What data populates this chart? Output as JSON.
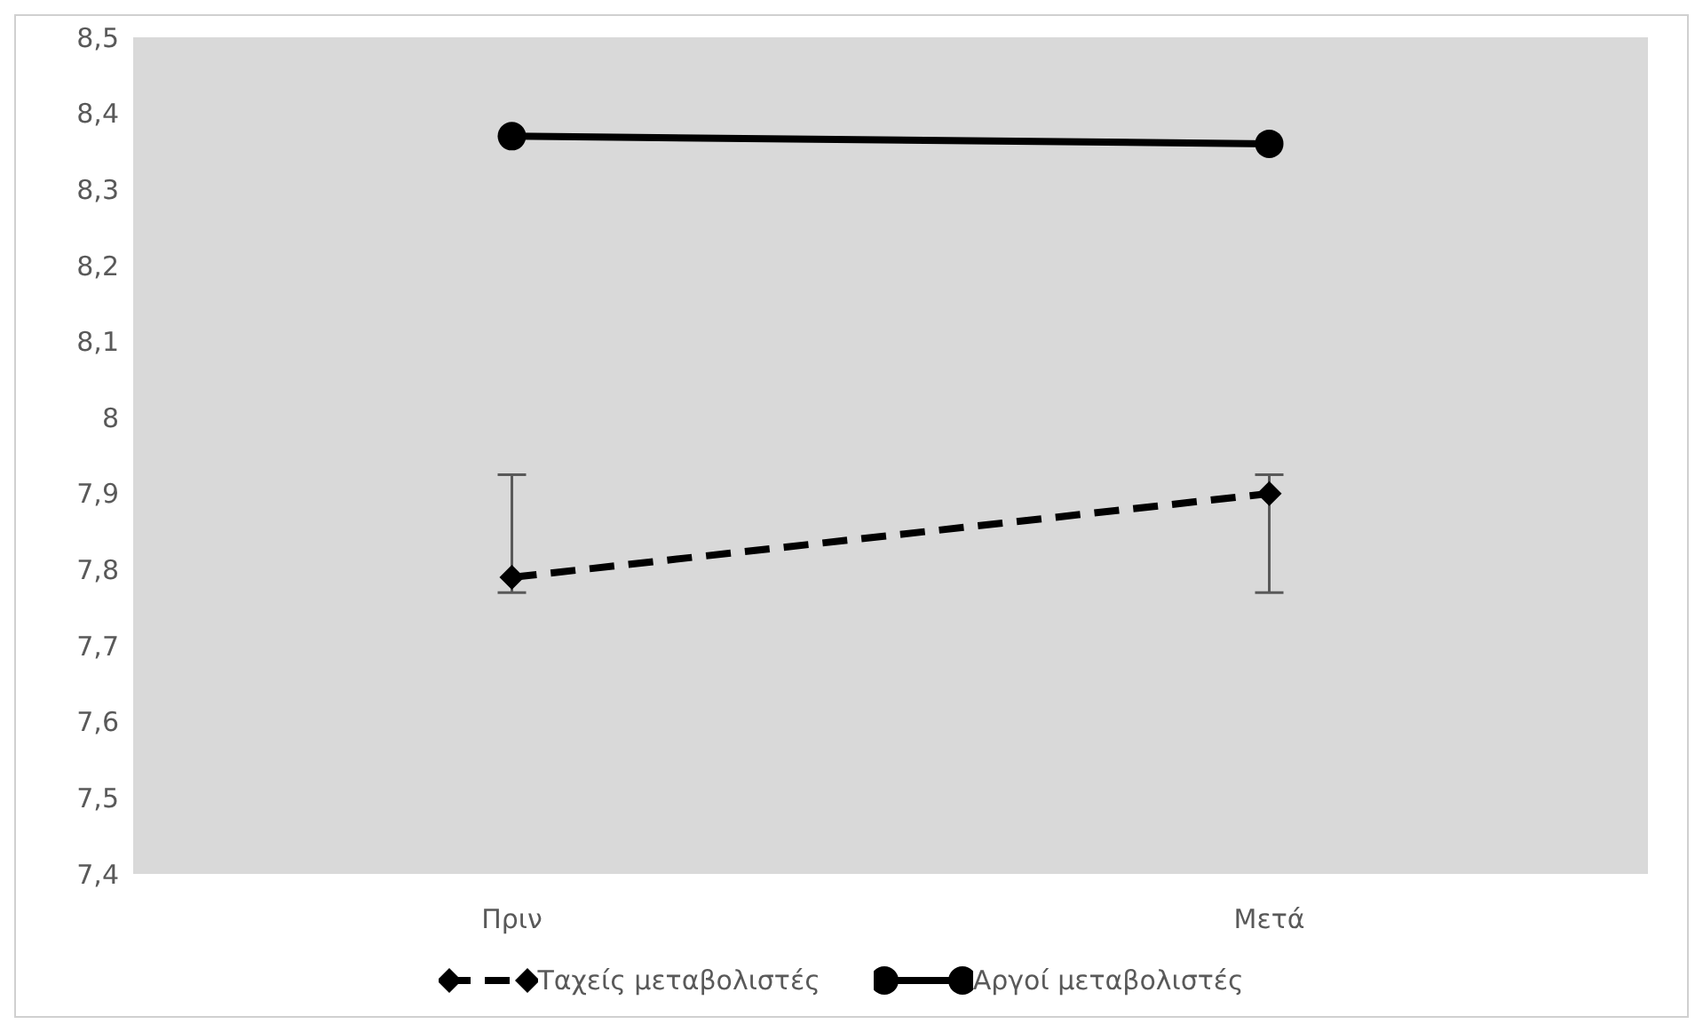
{
  "chart_data": {
    "type": "line",
    "categories": [
      "Πριν",
      "Μετά"
    ],
    "series": [
      {
        "name": "Ταχείς μεταβολιστές",
        "color": "#000000",
        "values": [
          7.79,
          7.9
        ],
        "errors": [
          [
            7.77,
            7.925
          ],
          [
            7.77,
            7.925
          ]
        ],
        "marker": "diamond",
        "line_style": "dashed"
      },
      {
        "name": "Αργοί μεταβολιστές",
        "color": "#000000",
        "values": [
          8.37,
          8.36
        ],
        "marker": "circle",
        "line_style": "solid"
      }
    ],
    "ylim": [
      7.4,
      8.5
    ],
    "yticks": [
      {
        "value": 7.4,
        "label": "7,4"
      },
      {
        "value": 7.5,
        "label": "7,5"
      },
      {
        "value": 7.6,
        "label": "7,6"
      },
      {
        "value": 7.7,
        "label": "7,7"
      },
      {
        "value": 7.8,
        "label": "7,8"
      },
      {
        "value": 7.9,
        "label": "7,9"
      },
      {
        "value": 8,
        "label": "8"
      },
      {
        "value": 8.1,
        "label": "8,1"
      },
      {
        "value": 8.2,
        "label": "8,2"
      },
      {
        "value": 8.3,
        "label": "8,3"
      },
      {
        "value": 8.4,
        "label": "8,4"
      },
      {
        "value": 8.5,
        "label": "8,5"
      }
    ],
    "grid": false,
    "legend": "bottom"
  }
}
